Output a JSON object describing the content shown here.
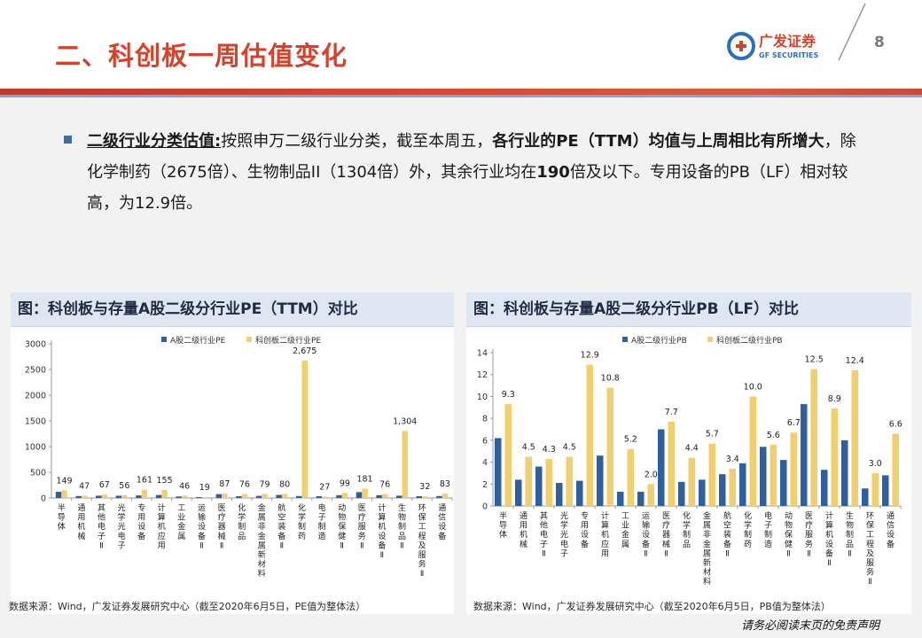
{
  "header": {
    "title": "二、科创板一周估值变化",
    "logo_name": "广发证券",
    "logo_sub": "GF SECURITIES",
    "page_number": "8"
  },
  "summary": {
    "label": "二级行业分类估值:",
    "t1": "按照申万二级行业分类，截至本周五，",
    "b1": "各行业的PE（TTM）均值与上周相比有所增大",
    "t2": "，除化学制药（2675倍）、生物制品II（1304倍）外，其余行业均在",
    "b2": "190",
    "t3": "倍及以下。专用设备的PB（LF）相对较高，为12.9倍。"
  },
  "chart_pe_title": "图：科创板与存量A股二级分行业PE（TTM）对比",
  "chart_pb_title": "图：科创板与存量A股二级分行业PB（LF）对比",
  "source_pe": "数据来源：Wind，广发证券发展研究中心（截至2020年6月5日，PE值为整体法）",
  "source_pb": "数据来源：Wind，广发证券发展研究中心（截至2020年6月5日，PB值为整体法）",
  "disclaimer": "请务必阅读末页的免责声明",
  "colors": {
    "a_share": "#2e5f9e",
    "star": "#f2cf6e",
    "title_red": "#d7412a"
  },
  "chart_data": [
    {
      "type": "bar",
      "title": "图：科创板与存量A股二级分行业PE（TTM）对比",
      "ylim": [
        0,
        3000
      ],
      "yticks": [
        0,
        500,
        1000,
        1500,
        2000,
        2500,
        3000
      ],
      "categories": [
        "半导体",
        "通用机械",
        "其他电子Ⅱ",
        "光学光电子",
        "专用设备",
        "计算机应用",
        "工业金属",
        "运输设备Ⅱ",
        "医疗器械Ⅱ",
        "化学制品",
        "金属非金属新材料",
        "航空装备Ⅱ",
        "化学制药",
        "电子制造",
        "动物保健Ⅱ",
        "医疗服务Ⅱ",
        "计算机设备Ⅱ",
        "生物制品Ⅱ",
        "环保工程及服务Ⅱ",
        "通信设备"
      ],
      "series": [
        {
          "name": "A股二级行业PE",
          "values": [
            120,
            38,
            45,
            44,
            50,
            58,
            30,
            18,
            75,
            35,
            42,
            60,
            38,
            35,
            55,
            115,
            55,
            45,
            35,
            38
          ]
        },
        {
          "name": "科创板二级行业PE",
          "values": [
            149,
            47,
            67,
            56,
            161,
            155,
            46,
            19,
            87,
            76,
            79,
            80,
            2675,
            27,
            99,
            181,
            76,
            1304,
            32,
            83
          ]
        }
      ],
      "data_labels": [
        "149",
        "47",
        "67",
        "56",
        "161",
        "155",
        "46",
        "19",
        "87",
        "76",
        "79",
        "80",
        "2,675",
        "27",
        "99",
        "181",
        "76",
        "1,304",
        "32",
        "83"
      ]
    },
    {
      "type": "bar",
      "title": "图：科创板与存量A股二级分行业PB（LF）对比",
      "ylim": [
        0,
        14
      ],
      "yticks": [
        0,
        2,
        4,
        6,
        8,
        10,
        12,
        14
      ],
      "categories": [
        "半导体",
        "通用机械",
        "其他电子Ⅱ",
        "光学光电子",
        "专用设备",
        "计算机应用",
        "工业金属",
        "运输设备Ⅱ",
        "医疗器械Ⅱ",
        "化学制品",
        "金属非金属新材料",
        "航空装备Ⅱ",
        "化学制药",
        "电子制造",
        "动物保健Ⅱ",
        "医疗服务Ⅱ",
        "计算机设备Ⅱ",
        "生物制品Ⅱ",
        "环保工程及服务Ⅱ",
        "通信设备"
      ],
      "series": [
        {
          "name": "A股二级行业PB",
          "values": [
            6.2,
            2.4,
            3.6,
            2.1,
            2.3,
            4.6,
            1.3,
            1.3,
            7.0,
            2.2,
            2.4,
            2.9,
            3.9,
            5.4,
            4.2,
            9.3,
            3.3,
            6.0,
            1.6,
            2.8
          ]
        },
        {
          "name": "科创板二级行业PB",
          "values": [
            9.3,
            4.5,
            4.3,
            4.5,
            12.9,
            10.8,
            5.2,
            2.0,
            7.7,
            4.4,
            5.7,
            3.4,
            10.0,
            5.6,
            6.7,
            12.5,
            8.9,
            12.4,
            3.0,
            6.6
          ]
        }
      ],
      "data_labels": [
        "9.3",
        "4.5",
        "4.3",
        "4.5",
        "12.9",
        "10.8",
        "5.2",
        "2.0",
        "7.7",
        "4.4",
        "5.7",
        "3.4",
        "10.0",
        "5.6",
        "6.7",
        "12.5",
        "8.9",
        "12.4",
        "3.0",
        "6.6"
      ]
    }
  ]
}
